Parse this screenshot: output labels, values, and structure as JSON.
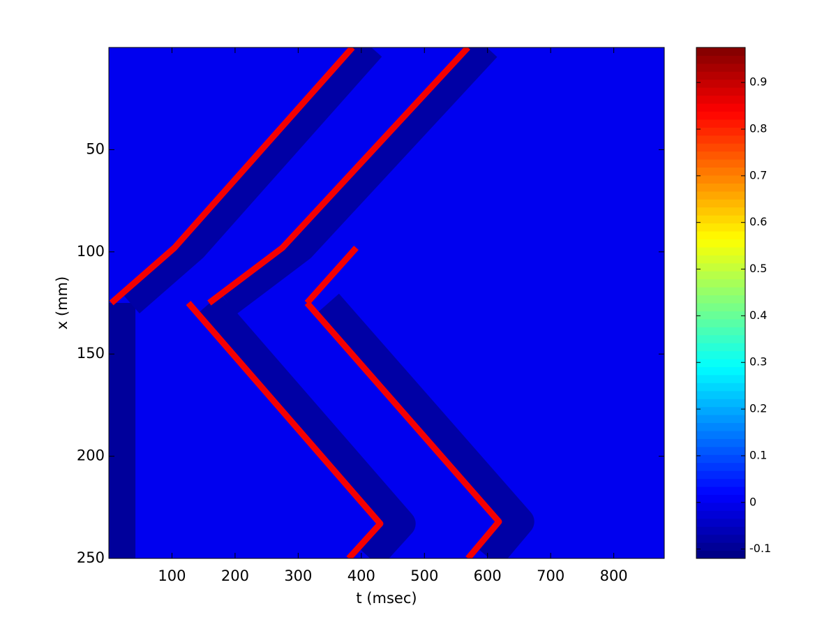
{
  "chart_data": {
    "type": "heatmap",
    "xlabel": "t (msec)",
    "ylabel": "x (mm)",
    "xlim": [
      0,
      880
    ],
    "ylim": [
      0,
      250
    ],
    "y_reversed": true,
    "xticks": [
      100,
      200,
      300,
      400,
      500,
      600,
      700,
      800
    ],
    "yticks": [
      50,
      100,
      150,
      200,
      250
    ],
    "clim": [
      -0.12,
      0.975
    ],
    "cticks": [
      -0.1,
      0,
      0.1,
      0.2,
      0.3,
      0.4,
      0.5,
      0.6,
      0.7,
      0.8,
      0.9
    ],
    "background_value": 0,
    "bands": [
      {
        "t": [
          20,
          20
        ],
        "x": [
          125,
          250
        ],
        "value": -0.09
      },
      {
        "t": [
          34,
          134,
          416
        ],
        "x": [
          125,
          98,
          0
        ],
        "value": -0.08
      },
      {
        "t": [
          160,
          464,
          414
        ],
        "x": [
          125,
          233,
          250
        ],
        "value": -0.08
      },
      {
        "t": [
          189,
          305,
          599
        ],
        "x": [
          125,
          98,
          0
        ],
        "value": -0.08
      },
      {
        "t": [
          348,
          652,
          603
        ],
        "x": [
          125,
          232,
          250
        ],
        "value": -0.08
      }
    ],
    "traces": [
      {
        "t": [
          4,
          104,
          386
        ],
        "x": [
          125,
          98,
          0
        ],
        "value": 0.85
      },
      {
        "t": [
          126,
          430,
          380
        ],
        "x": [
          125,
          233,
          250
        ],
        "value": 0.85
      },
      {
        "t": [
          159,
          275,
          569
        ],
        "x": [
          125,
          98,
          0
        ],
        "value": 0.85
      },
      {
        "t": [
          314,
          392
        ],
        "x": [
          125,
          98
        ],
        "value": 0.85
      },
      {
        "t": [
          314,
          618,
          569
        ],
        "x": [
          125,
          232,
          250
        ],
        "value": 0.85
      }
    ]
  }
}
